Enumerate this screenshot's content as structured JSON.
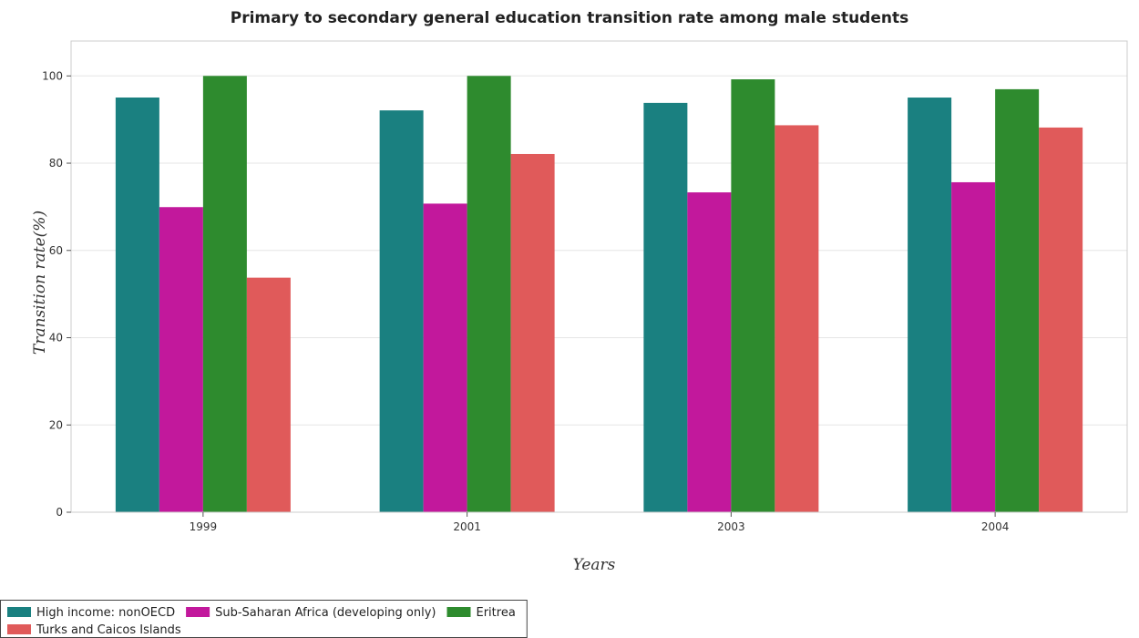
{
  "chart_data": {
    "type": "bar",
    "title": "Primary to secondary general education transition rate among male students",
    "xlabel": "Years",
    "ylabel": "Transition rate(%)",
    "categories": [
      "1999",
      "2001",
      "2003",
      "2004"
    ],
    "ylim": [
      0,
      108
    ],
    "yticks": [
      0,
      20,
      40,
      60,
      80,
      100
    ],
    "grid": true,
    "legend_position": "bottom-left",
    "series": [
      {
        "name": "High income: nonOECD",
        "color": "#1a8080",
        "values": [
          95.05,
          92.1,
          93.82,
          95.04
        ]
      },
      {
        "name": "Sub-Saharan Africa (developing only)",
        "color": "#c2189c",
        "values": [
          69.93,
          70.73,
          73.31,
          75.63
        ]
      },
      {
        "name": "Eritrea",
        "color": "#2e8b2e",
        "values": [
          100,
          100,
          99.22,
          96.95
        ]
      },
      {
        "name": "Turks and Caicos Islands",
        "color": "#e05a5a",
        "values": [
          53.76,
          82.1,
          88.69,
          88.17
        ]
      }
    ]
  }
}
